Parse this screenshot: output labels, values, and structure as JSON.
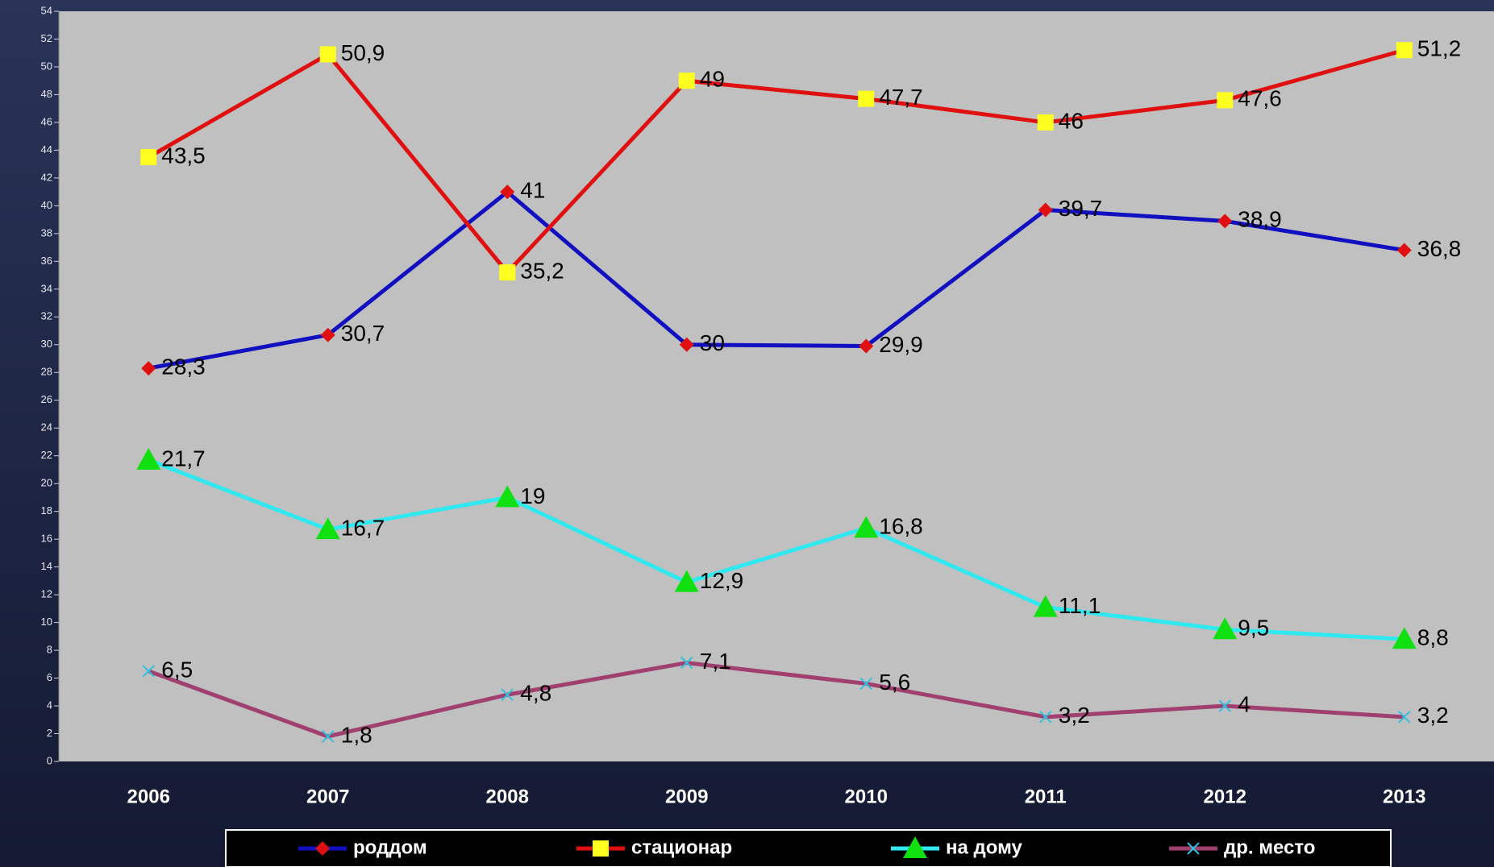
{
  "chart_data": {
    "type": "line",
    "categories": [
      "2006",
      "2007",
      "2008",
      "2009",
      "2010",
      "2011",
      "2012",
      "2013"
    ],
    "series": [
      {
        "name": "роддом",
        "color": "#1010c0",
        "marker_color": "#e01010",
        "marker": "diamond",
        "values": [
          28.3,
          30.7,
          41,
          30,
          29.9,
          39.7,
          38.9,
          36.8
        ],
        "value_labels": [
          "28,3",
          "30,7",
          "41",
          "30",
          "29,9",
          "39,7",
          "38,9",
          "36,8"
        ]
      },
      {
        "name": "стационар",
        "color": "#e01010",
        "marker_color": "#ffff20",
        "marker": "square",
        "values": [
          43.5,
          50.9,
          35.2,
          49,
          47.7,
          46,
          47.6,
          51.2
        ],
        "value_labels": [
          "43,5",
          "50,9",
          "35,2",
          "49",
          "47,7",
          "46",
          "47,6",
          "51,2"
        ]
      },
      {
        "name": "на дому",
        "color": "#30e8f0",
        "marker_color": "#10e010",
        "marker": "triangle",
        "values": [
          21.7,
          16.7,
          19,
          12.9,
          16.8,
          11.1,
          9.5,
          8.8
        ],
        "value_labels": [
          "21,7",
          "16,7",
          "19",
          "12,9",
          "16,8",
          "11,1",
          "9,5",
          "8,8"
        ]
      },
      {
        "name": "др. место",
        "color": "#a04070",
        "marker_color": "#30c0e0",
        "marker": "x",
        "values": [
          6.5,
          1.8,
          4.8,
          7.1,
          5.6,
          3.2,
          4,
          3.2
        ],
        "value_labels": [
          "6,5",
          "1,8",
          "4,8",
          "7,1",
          "5,6",
          "3,2",
          "4",
          "3,2"
        ]
      }
    ],
    "ylim": [
      0,
      54
    ],
    "yticks": [
      0,
      2,
      4,
      6,
      8,
      10,
      12,
      14,
      16,
      18,
      20,
      22,
      24,
      26,
      28,
      30,
      32,
      34,
      36,
      38,
      40,
      42,
      44,
      46,
      48,
      50,
      52,
      54
    ],
    "legend": "bottom"
  }
}
